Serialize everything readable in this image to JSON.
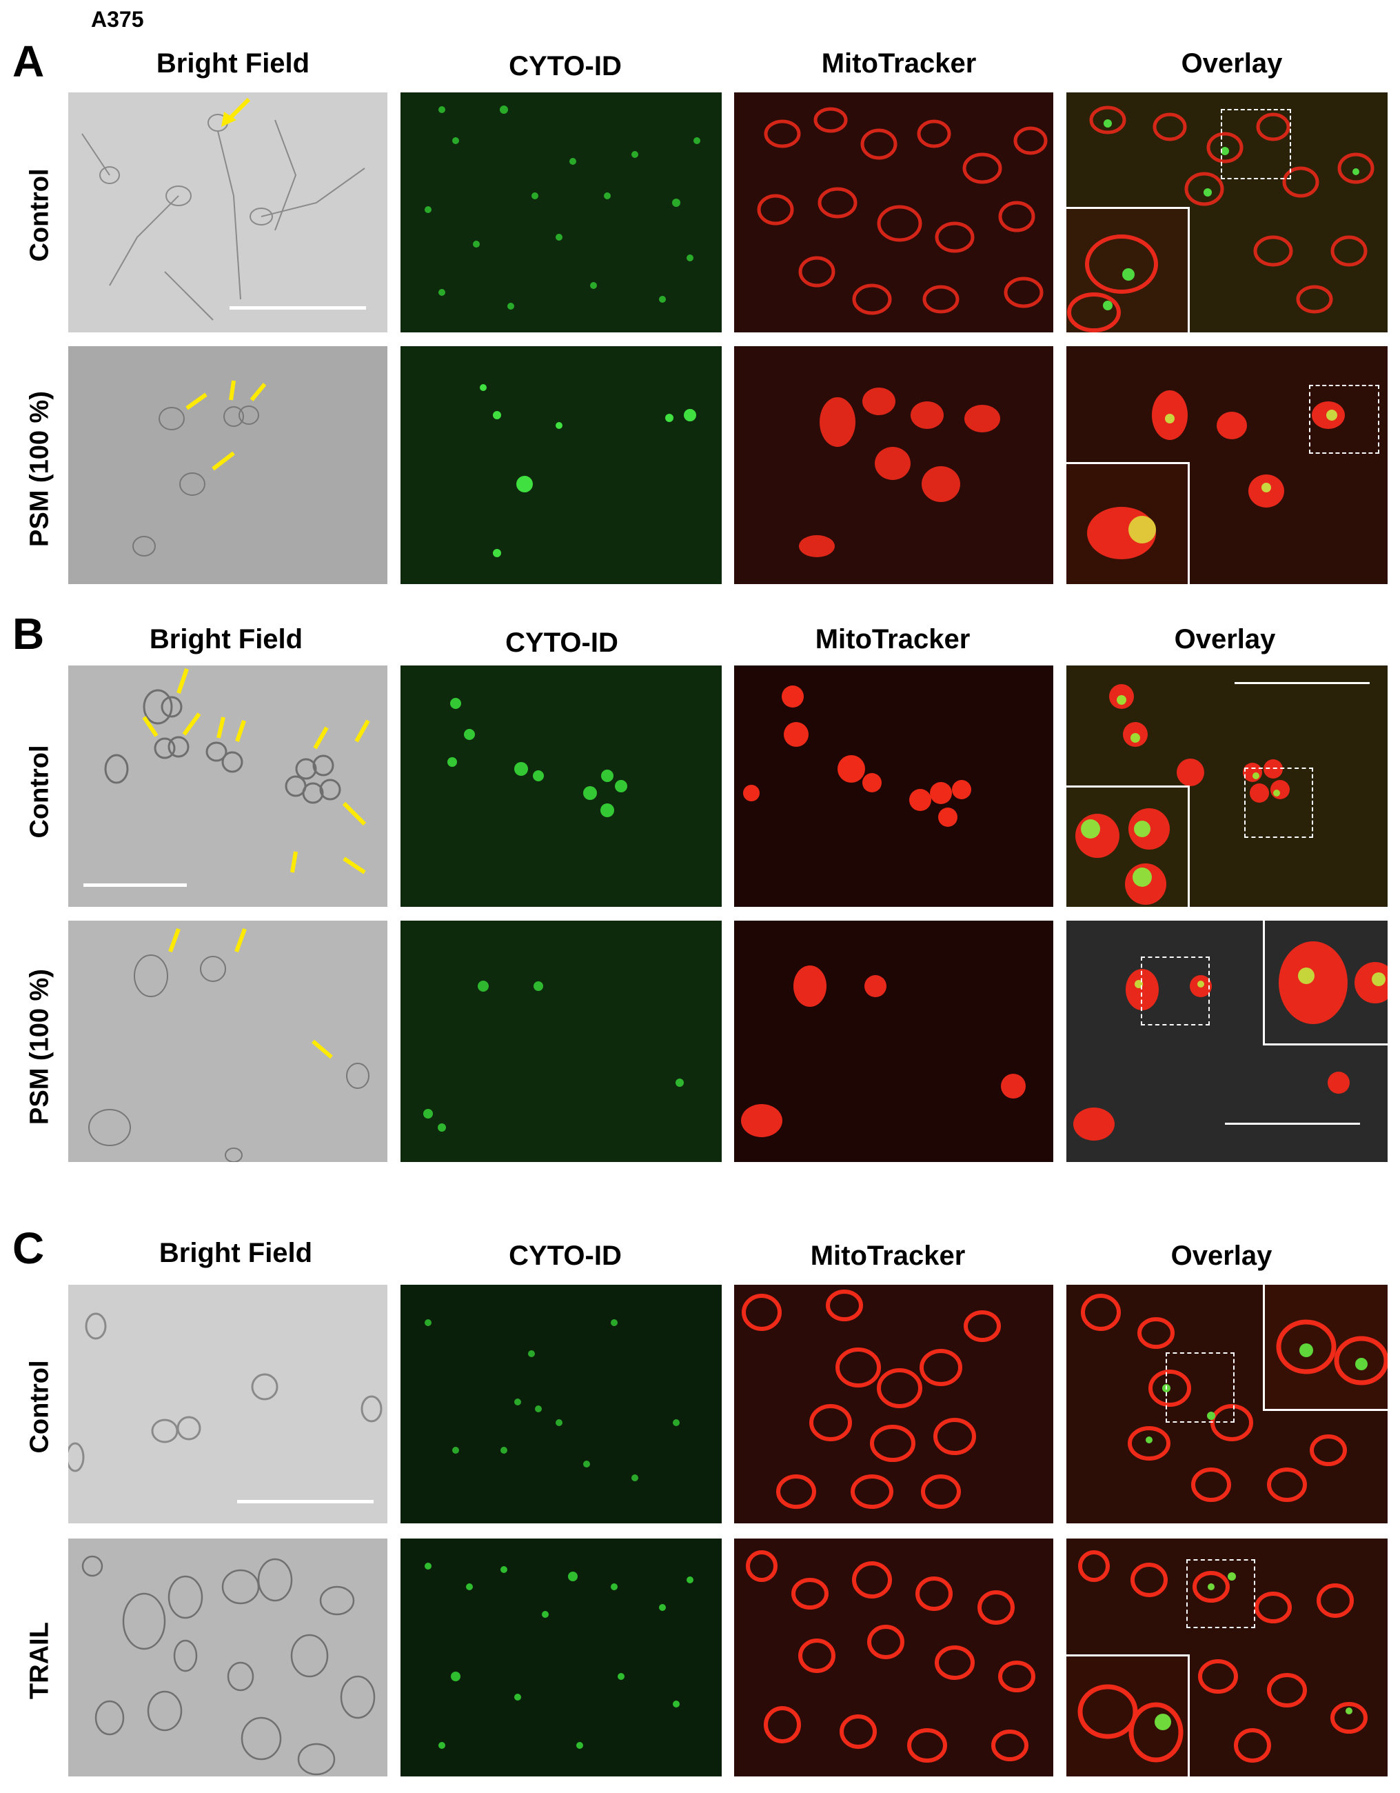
{
  "figure": {
    "cell_line": "A375",
    "panel_letters": [
      "A",
      "B",
      "C"
    ],
    "column_headers": [
      "Bright Field",
      "CYTO-ID",
      "MitoTracker",
      "Overlay"
    ],
    "rows": {
      "a_top": "Control",
      "a_bottom": "PSM (100 %)",
      "b_top": "Control",
      "b_bottom": "PSM (100 %)",
      "c_top": "Control",
      "c_bottom": "TRAIL"
    },
    "colors": {
      "arrow": "#ffea00",
      "green_signal": "#3fe03f",
      "red_signal": "#ff2a10",
      "scale_bar": "#ffffff"
    }
  }
}
